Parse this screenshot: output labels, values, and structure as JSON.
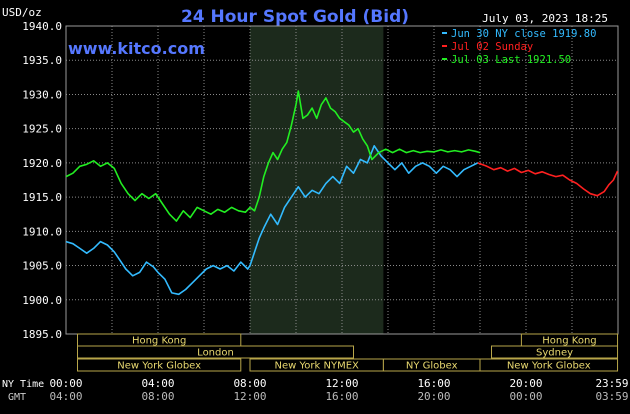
{
  "header": {
    "units_label": "USD/oz",
    "title": "24 Hour Spot Gold (Bid)",
    "timestamp": "July 03, 2023 18:25",
    "watermark": "www.kitco.com"
  },
  "legend": [
    {
      "label": "Jun 30 NY close 1919.80",
      "color": "#33bbff"
    },
    {
      "label": "Jul 02 Sunday",
      "color": "#ff2020"
    },
    {
      "label": "Jul 03 Last 1921.50",
      "color": "#22ee22"
    }
  ],
  "footer": {
    "ny_label": "NY Time",
    "gmt_label": "GMT",
    "ny_ticks": [
      "00:00",
      "04:00",
      "08:00",
      "12:00",
      "16:00",
      "20:00",
      "23:59"
    ],
    "gmt_ticks": [
      "04:00",
      "08:00",
      "12:00",
      "16:00",
      "20:00",
      "00:00",
      "03:59"
    ]
  },
  "markets": [
    {
      "label": "Hong Kong",
      "start": 0.5,
      "end": 7.6,
      "row": 0
    },
    {
      "label": "London",
      "start": 0.5,
      "end": 12.5,
      "row": 1
    },
    {
      "label": "New York Globex",
      "start": 0.5,
      "end": 7.6,
      "row": 2
    },
    {
      "label": "New York NYMEX",
      "start": 8.0,
      "end": 13.8,
      "row": 2
    },
    {
      "label": "NY Globex",
      "start": 13.8,
      "end": 18.0,
      "row": 2
    },
    {
      "label": "Hong Kong",
      "start": 19.8,
      "end": 23.98,
      "row": 0
    },
    {
      "label": "Sydney",
      "start": 18.5,
      "end": 23.98,
      "row": 1
    },
    {
      "label": "New York Globex",
      "start": 18.0,
      "end": 23.98,
      "row": 2
    }
  ],
  "chart_data": {
    "type": "line",
    "title": "24 Hour Spot Gold (Bid)",
    "ylabel": "USD/oz",
    "xlabel": "NY Time",
    "xlim": [
      0,
      24
    ],
    "ylim": [
      1895,
      1940
    ],
    "yticks": [
      1895,
      1900,
      1905,
      1910,
      1915,
      1920,
      1925,
      1930,
      1935,
      1940
    ],
    "highlight_band": [
      8.0,
      13.8
    ],
    "grid": true,
    "legend_position": "top-right",
    "series": [
      {
        "name": "Jun 30 NY close 1919.80",
        "color": "#33bbff",
        "x": [
          0,
          0.3,
          0.6,
          0.9,
          1.2,
          1.5,
          1.8,
          2.1,
          2.3,
          2.6,
          2.9,
          3.2,
          3.5,
          3.8,
          4.0,
          4.3,
          4.6,
          4.9,
          5.2,
          5.5,
          5.8,
          6.1,
          6.4,
          6.7,
          7.0,
          7.3,
          7.6,
          7.9,
          8.0,
          8.2,
          8.4,
          8.6,
          8.9,
          9.2,
          9.5,
          9.8,
          10.1,
          10.4,
          10.7,
          11.0,
          11.3,
          11.6,
          11.9,
          12.2,
          12.5,
          12.8,
          13.1,
          13.4,
          13.7,
          14.0,
          14.3,
          14.6,
          14.9,
          15.2,
          15.5,
          15.8,
          16.1,
          16.4,
          16.7,
          17.0,
          17.3,
          17.6,
          17.9
        ],
        "y": [
          1908.5,
          1908.2,
          1907.5,
          1906.8,
          1907.5,
          1908.5,
          1908.0,
          1907.0,
          1906.0,
          1904.5,
          1903.5,
          1904.0,
          1905.5,
          1904.8,
          1904.0,
          1903.0,
          1901.0,
          1900.8,
          1901.5,
          1902.5,
          1903.5,
          1904.5,
          1905.0,
          1904.5,
          1905.0,
          1904.2,
          1905.5,
          1904.5,
          1905.0,
          1907.0,
          1909.0,
          1910.5,
          1912.5,
          1911.0,
          1913.5,
          1915.0,
          1916.5,
          1915.0,
          1916.0,
          1915.5,
          1917.0,
          1918.0,
          1917.0,
          1919.5,
          1918.5,
          1920.5,
          1920.0,
          1922.5,
          1921.0,
          1920.0,
          1919.0,
          1920.0,
          1918.5,
          1919.5,
          1920.0,
          1919.5,
          1918.5,
          1919.5,
          1919.0,
          1918.0,
          1919.0,
          1919.5,
          1920.0
        ]
      },
      {
        "name": "Jul 02 Sunday",
        "color": "#ff2020",
        "x": [
          17.9,
          18.3,
          18.6,
          18.9,
          19.2,
          19.5,
          19.8,
          20.1,
          20.4,
          20.7,
          21.0,
          21.3,
          21.6,
          21.9,
          22.2,
          22.5,
          22.8,
          23.1,
          23.4,
          23.6,
          23.8,
          23.98
        ],
        "y": [
          1920.0,
          1919.5,
          1919.0,
          1919.3,
          1918.8,
          1919.2,
          1918.6,
          1918.9,
          1918.4,
          1918.7,
          1918.3,
          1918.0,
          1918.2,
          1917.5,
          1917.0,
          1916.2,
          1915.5,
          1915.2,
          1915.8,
          1916.8,
          1917.5,
          1918.8
        ]
      },
      {
        "name": "Jul 03 Last 1921.50",
        "color": "#22ee22",
        "x": [
          0,
          0.3,
          0.6,
          0.9,
          1.2,
          1.5,
          1.8,
          2.1,
          2.4,
          2.7,
          3.0,
          3.3,
          3.6,
          3.9,
          4.2,
          4.5,
          4.8,
          5.1,
          5.4,
          5.7,
          6.0,
          6.3,
          6.6,
          6.9,
          7.2,
          7.5,
          7.8,
          8.0,
          8.2,
          8.4,
          8.6,
          8.8,
          9.0,
          9.2,
          9.4,
          9.6,
          9.8,
          10.0,
          10.1,
          10.3,
          10.5,
          10.7,
          10.9,
          11.1,
          11.3,
          11.5,
          11.7,
          11.9,
          12.1,
          12.3,
          12.5,
          12.7,
          12.9,
          13.1,
          13.3,
          13.6,
          13.9,
          14.2,
          14.5,
          14.8,
          15.1,
          15.4,
          15.7,
          16.0,
          16.3,
          16.6,
          16.9,
          17.2,
          17.5,
          17.8,
          18.0
        ],
        "y": [
          1918.0,
          1918.5,
          1919.5,
          1919.8,
          1920.3,
          1919.5,
          1920.0,
          1919.2,
          1917.0,
          1915.5,
          1914.5,
          1915.5,
          1914.8,
          1915.5,
          1914.0,
          1912.5,
          1911.5,
          1913.0,
          1912.0,
          1913.5,
          1913.0,
          1912.5,
          1913.2,
          1912.8,
          1913.5,
          1913.0,
          1912.8,
          1913.5,
          1913.0,
          1915.0,
          1918.0,
          1920.0,
          1921.5,
          1920.5,
          1922.0,
          1923.0,
          1925.5,
          1928.5,
          1930.5,
          1926.5,
          1927.0,
          1928.0,
          1926.5,
          1928.5,
          1929.5,
          1928.0,
          1927.5,
          1926.5,
          1926.0,
          1925.5,
          1924.5,
          1925.0,
          1923.5,
          1922.5,
          1920.5,
          1921.5,
          1922.0,
          1921.5,
          1922.0,
          1921.5,
          1921.8,
          1921.5,
          1921.7,
          1921.6,
          1921.9,
          1921.6,
          1921.8,
          1921.6,
          1921.9,
          1921.7,
          1921.5
        ]
      }
    ]
  }
}
